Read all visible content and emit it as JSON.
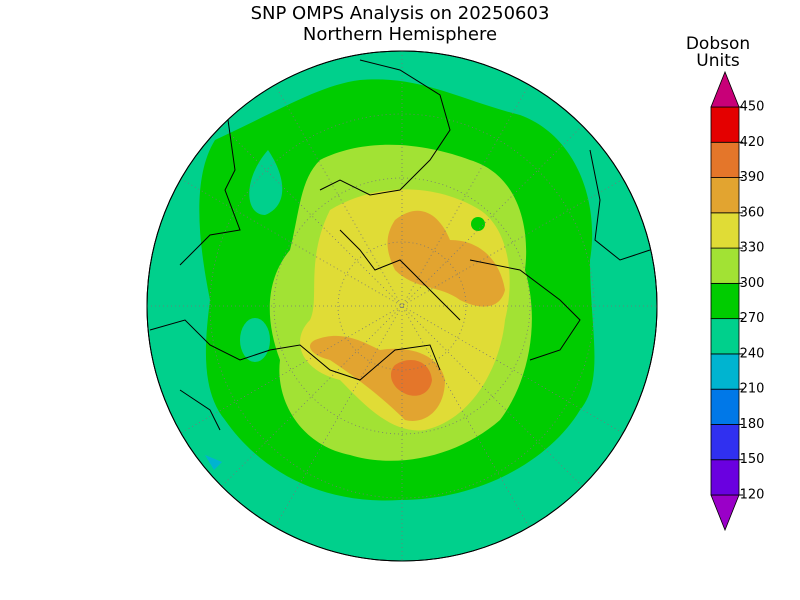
{
  "title": "SNP OMPS Analysis on 20250603",
  "subtitle": "Northern Hemisphere",
  "colorbar": {
    "label_lines": [
      "Dobson",
      "Units"
    ],
    "ticks": [
      120,
      150,
      180,
      210,
      240,
      270,
      300,
      330,
      360,
      390,
      420,
      450
    ],
    "colors": [
      "#9a00c8",
      "#6a00e0",
      "#3030f0",
      "#0078e8",
      "#00b4d0",
      "#00d08c",
      "#00cc00",
      "#a2e234",
      "#e0dc36",
      "#e2a430",
      "#e4762a",
      "#e40000",
      "#c80078"
    ]
  }
}
